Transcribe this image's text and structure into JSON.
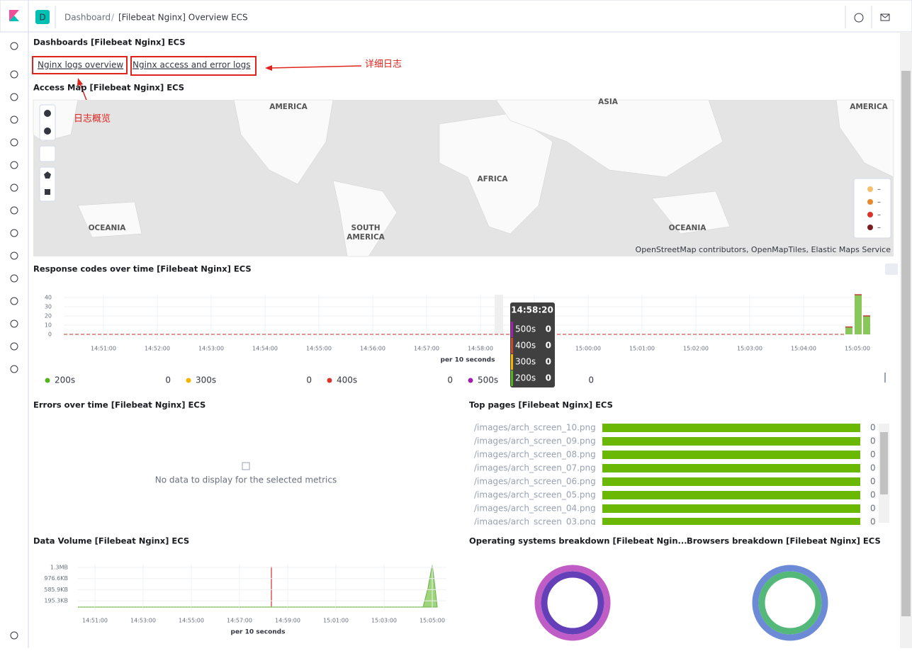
{
  "header": {
    "space": "D",
    "breadcrumbs": [
      "Dashboard",
      "[Filebeat Nginx] Overview ECS"
    ]
  },
  "links_panel": {
    "title": "Dashboards [Filebeat Nginx] ECS",
    "items": [
      "Nginx logs overview",
      "Nginx access and error logs"
    ]
  },
  "annotations": [
    "详细日志",
    "日志概览"
  ],
  "map_panel": {
    "title": "Access Map [Filebeat Nginx] ECS",
    "labels": [
      "AMERICA",
      "ASIA",
      "AMERICA",
      "AFRICA",
      "OCEANIA",
      [
        "SOUTH",
        "AMERICA"
      ],
      "OCEANIA"
    ],
    "attribution": "OpenStreetMap contributors, OpenMapTiles, Elastic Maps Service",
    "legend": [
      {
        "color": "#f5c06e",
        "label": "–"
      },
      {
        "color": "#e8892f",
        "label": "–"
      },
      {
        "color": "#d9352a",
        "label": "–"
      },
      {
        "color": "#7a1f1f",
        "label": "–"
      }
    ]
  },
  "response_panel": {
    "title": "Response codes over time [Filebeat Nginx] ECS",
    "yticks": [
      0,
      10,
      20,
      30,
      40
    ],
    "ylim": [
      0,
      40
    ],
    "xtick_labels": [
      "14:51:00",
      "14:52:00",
      "14:53:00",
      "14:54:00",
      "14:55:00",
      "14:56:00",
      "14:57:00",
      "14:58:00",
      "14:59:00",
      "15:00:00",
      "15:01:00",
      "15:02:00",
      "15:03:00",
      "15:04:00",
      "15:05:00"
    ],
    "x_label": "per 10 seconds",
    "values": [
      8,
      43,
      20
    ],
    "color": "#8ac75a",
    "tooltip": {
      "title": "14:58:20",
      "rows": [
        {
          "name": "500s",
          "value": 0,
          "color": "#a21fb0"
        },
        {
          "name": "400s",
          "value": 0,
          "color": "#c94a28"
        },
        {
          "name": "300s",
          "value": 0,
          "color": "#f5b400"
        },
        {
          "name": "200s",
          "value": 0,
          "color": "#54b31e"
        }
      ]
    },
    "legend": [
      {
        "name": "200s",
        "value": 0,
        "color": "#54b31e"
      },
      {
        "name": "300s",
        "value": 0,
        "color": "#f5b400"
      },
      {
        "name": "400s",
        "value": 0,
        "color": "#d9352a"
      },
      {
        "name": "500s",
        "value": 0,
        "color": "#a21fb0"
      }
    ]
  },
  "errors_panel": {
    "title": "Errors over time [Filebeat Nginx] ECS",
    "message": "No data to display for the selected metrics"
  },
  "top_pages_panel": {
    "title": "Top pages [Filebeat Nginx] ECS",
    "rows": [
      [
        "/images/arch_screen_10.png",
        0
      ],
      [
        "/images/arch_screen_09.png",
        0
      ],
      [
        "/images/arch_screen_08.png",
        0
      ],
      [
        "/images/arch_screen_07.png",
        0
      ],
      [
        "/images/arch_screen_06.png",
        0
      ],
      [
        "/images/arch_screen_05.png",
        0
      ],
      [
        "/images/arch_screen_04.png",
        0
      ],
      [
        "/images/arch_screen_03.png",
        0
      ]
    ]
  },
  "volume_panel": {
    "title": "Data Volume [Filebeat Nginx] ECS",
    "ylim": [
      0,
      1400000
    ],
    "yticks": [
      {
        "value": 200000,
        "label": "195.3KB"
      },
      {
        "value": 600000,
        "label": "585.9KB"
      },
      {
        "value": 1000000,
        "label": "976.6KB"
      },
      {
        "value": 1400000,
        "label": "1.3MB"
      }
    ],
    "xtick_labels": [
      "14:51:00",
      "14:53:00",
      "14:55:00",
      "14:57:00",
      "14:59:00",
      "15:01:00",
      "15:03:00",
      "15:05:00"
    ],
    "x_label": "per 10 seconds"
  },
  "os_panel": {
    "title": "Operating systems breakdown [Filebeat Ngin..."
  },
  "browsers_panel": {
    "title": "Browsers breakdown [Filebeat Nginx] ECS"
  }
}
